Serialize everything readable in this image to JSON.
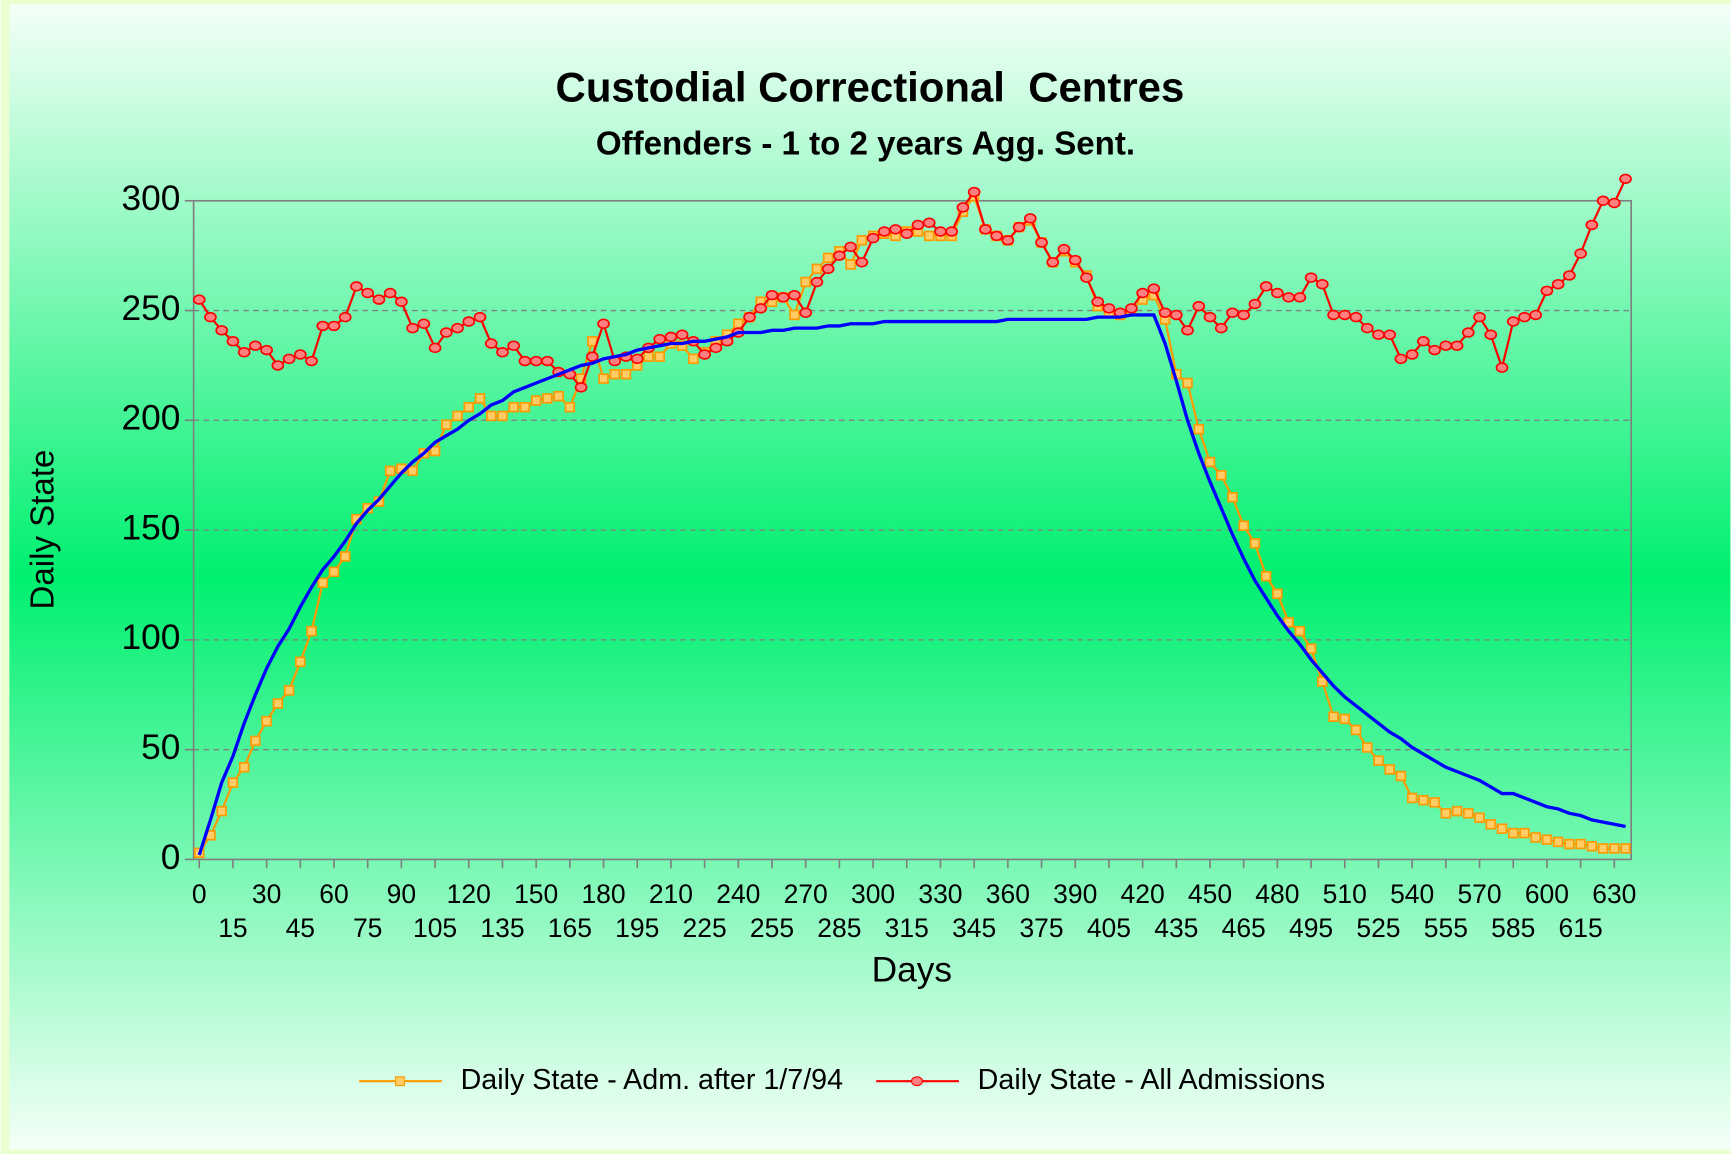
{
  "chart_data": {
    "type": "line",
    "title": "Custodial Correctional  Centres",
    "subtitle": "Offenders - 1 to 2 years Agg. Sent.",
    "x_label": "Days",
    "y_label": "Daily State",
    "xlim": [
      -2.5,
      637.5
    ],
    "ylim": [
      0,
      300
    ],
    "xticks": [
      0,
      15,
      30,
      45,
      60,
      75,
      90,
      105,
      120,
      135,
      150,
      165,
      180,
      195,
      210,
      225,
      240,
      255,
      270,
      285,
      300,
      315,
      330,
      345,
      360,
      375,
      390,
      405,
      420,
      435,
      450,
      465,
      480,
      495,
      510,
      525,
      540,
      555,
      570,
      585,
      600,
      615,
      630
    ],
    "yticks": [
      0,
      50,
      100,
      150,
      200,
      250,
      300
    ],
    "grid": true,
    "legend": "bottom",
    "x": [
      0,
      5,
      10,
      15,
      20,
      25,
      30,
      35,
      40,
      45,
      50,
      55,
      60,
      65,
      70,
      75,
      80,
      85,
      90,
      95,
      100,
      105,
      110,
      115,
      120,
      125,
      130,
      135,
      140,
      145,
      150,
      155,
      160,
      165,
      170,
      175,
      180,
      185,
      190,
      195,
      200,
      205,
      210,
      215,
      220,
      225,
      230,
      235,
      240,
      245,
      250,
      255,
      260,
      265,
      270,
      275,
      280,
      285,
      290,
      295,
      300,
      305,
      310,
      315,
      320,
      325,
      330,
      335,
      340,
      345,
      350,
      355,
      360,
      365,
      370,
      375,
      380,
      385,
      390,
      395,
      400,
      405,
      410,
      415,
      420,
      425,
      430,
      435,
      440,
      445,
      450,
      455,
      460,
      465,
      470,
      475,
      480,
      485,
      490,
      495,
      500,
      505,
      510,
      515,
      520,
      525,
      530,
      535,
      540,
      545,
      550,
      555,
      560,
      565,
      570,
      575,
      580,
      585,
      590,
      595,
      600,
      605,
      610,
      615,
      620,
      625,
      630,
      635
    ],
    "series": [
      {
        "name": "Daily State - Adm. after 1/7/94",
        "color": "#ff9900",
        "marker": "square",
        "values": [
          3,
          11,
          22,
          35,
          42,
          54,
          63,
          71,
          77,
          90,
          104,
          126,
          131,
          138,
          155,
          160,
          163,
          177,
          178,
          177,
          185,
          186,
          198,
          202,
          206,
          210,
          202,
          202,
          206,
          206,
          209,
          210,
          211,
          206,
          219,
          236,
          219,
          221,
          221,
          225,
          229,
          229,
          235,
          234,
          228,
          231,
          236,
          239,
          244,
          247,
          254,
          254,
          256,
          248,
          263,
          269,
          274,
          277,
          271,
          282,
          284,
          285,
          284,
          286,
          286,
          284,
          284,
          284,
          295,
          302,
          287,
          284,
          282,
          288,
          291,
          281,
          272,
          277,
          272,
          266,
          252,
          249,
          248,
          250,
          255,
          257,
          246,
          221,
          217,
          196,
          181,
          175,
          165,
          152,
          144,
          129,
          121,
          108,
          104,
          96,
          81,
          65,
          64,
          59,
          51,
          45,
          41,
          38,
          28,
          27,
          26,
          21,
          22,
          21,
          19,
          16,
          14,
          12,
          12,
          10,
          9,
          8,
          7,
          7,
          6,
          5,
          5,
          5
        ]
      },
      {
        "name": "Daily State - All Admissions",
        "color": "#ff0000",
        "marker": "circle",
        "values": [
          255,
          247,
          241,
          236,
          231,
          234,
          232,
          225,
          228,
          230,
          227,
          243,
          243,
          247,
          261,
          258,
          255,
          258,
          254,
          242,
          244,
          233,
          240,
          242,
          245,
          247,
          235,
          231,
          234,
          227,
          227,
          227,
          222,
          221,
          215,
          229,
          244,
          227,
          229,
          228,
          233,
          237,
          238,
          239,
          236,
          230,
          233,
          236,
          240,
          247,
          251,
          257,
          256,
          257,
          249,
          263,
          269,
          275,
          279,
          272,
          283,
          286,
          287,
          285,
          289,
          290,
          286,
          286,
          297,
          304,
          287,
          284,
          282,
          288,
          292,
          281,
          272,
          278,
          273,
          265,
          254,
          251,
          249,
          251,
          258,
          260,
          249,
          248,
          241,
          252,
          247,
          242,
          249,
          248,
          253,
          261,
          258,
          256,
          256,
          265,
          262,
          248,
          248,
          247,
          242,
          239,
          239,
          228,
          230,
          236,
          232,
          234,
          234,
          240,
          247,
          239,
          224,
          245,
          247,
          248,
          259,
          262,
          266,
          276,
          289,
          300,
          299,
          310
        ]
      },
      {
        "color": "#0000ff",
        "marker": "none",
        "values": [
          2,
          18,
          35,
          47,
          62,
          75,
          87,
          97,
          105,
          115,
          124,
          132,
          138,
          145,
          153,
          159,
          164,
          170,
          176,
          181,
          185,
          190,
          193,
          196,
          200,
          203,
          207,
          209,
          213,
          215,
          217,
          219,
          221,
          223,
          225,
          226,
          228,
          229,
          230,
          232,
          233,
          234,
          235,
          235,
          236,
          236,
          237,
          238,
          240,
          240,
          240,
          241,
          241,
          242,
          242,
          242,
          243,
          243,
          244,
          244,
          244,
          245,
          245,
          245,
          245,
          245,
          245,
          245,
          245,
          245,
          245,
          245,
          246,
          246,
          246,
          246,
          246,
          246,
          246,
          246,
          247,
          247,
          247,
          248,
          248,
          248,
          235,
          218,
          200,
          185,
          172,
          160,
          148,
          137,
          127,
          119,
          111,
          104,
          98,
          91,
          85,
          79,
          74,
          70,
          66,
          62,
          58,
          55,
          51,
          48,
          45,
          42,
          40,
          38,
          36,
          33,
          30,
          30,
          28,
          26,
          24,
          23,
          21,
          20,
          18,
          17,
          16,
          15
        ]
      }
    ]
  }
}
